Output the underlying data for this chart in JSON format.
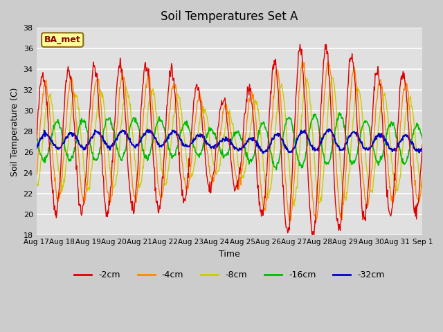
{
  "title": "Soil Temperatures Set A",
  "xlabel": "Time",
  "ylabel": "Soil Temperature (C)",
  "ylim": [
    18,
    38
  ],
  "yticks": [
    18,
    20,
    22,
    24,
    26,
    28,
    30,
    32,
    34,
    36,
    38
  ],
  "line_colors": {
    "-2cm": "#dd0000",
    "-4cm": "#ff8800",
    "-8cm": "#cccc00",
    "-16cm": "#00bb00",
    "-32cm": "#0000cc"
  },
  "legend_label": "BA_met",
  "n_days": 15,
  "points_per_day": 48,
  "xtick_labels": [
    "Aug 17",
    "Aug 18",
    "Aug 19",
    "Aug 20",
    "Aug 21",
    "Aug 22",
    "Aug 23",
    "Aug 24",
    "Aug 25",
    "Aug 26",
    "Aug 27",
    "Aug 28",
    "Aug 29",
    "Aug 30",
    "Aug 31",
    "Sep 1"
  ]
}
